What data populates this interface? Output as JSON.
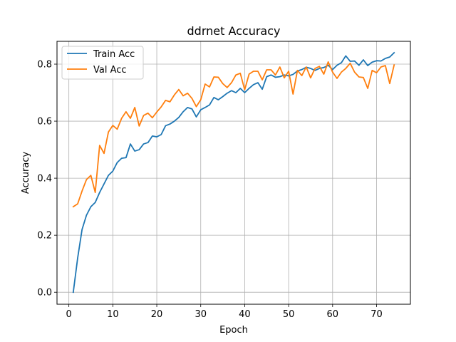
{
  "chart_data": {
    "type": "line",
    "title": "ddrnet Accuracy",
    "xlabel": "Epoch",
    "ylabel": "Accuracy",
    "xlim": [
      -2.7,
      77.7
    ],
    "ylim": [
      -0.042,
      0.88
    ],
    "x_ticks": [
      0,
      10,
      20,
      30,
      40,
      50,
      60,
      70
    ],
    "y_ticks": [
      0.0,
      0.2,
      0.4,
      0.6,
      0.8
    ],
    "x_tick_labels": [
      "0",
      "10",
      "20",
      "30",
      "40",
      "50",
      "60",
      "70"
    ],
    "y_tick_labels": [
      "0.0",
      "0.2",
      "0.4",
      "0.6",
      "0.8"
    ],
    "grid": true,
    "legend_placement": "upper-left",
    "x": [
      1,
      2,
      3,
      4,
      5,
      6,
      7,
      8,
      9,
      10,
      11,
      12,
      13,
      14,
      15,
      16,
      17,
      18,
      19,
      20,
      21,
      22,
      23,
      24,
      25,
      26,
      27,
      28,
      29,
      30,
      31,
      32,
      33,
      34,
      35,
      36,
      37,
      38,
      39,
      40,
      41,
      42,
      43,
      44,
      45,
      46,
      47,
      48,
      49,
      50,
      51,
      52,
      53,
      54,
      55,
      56,
      57,
      58,
      59,
      60,
      61,
      62,
      63,
      64,
      65,
      66,
      67,
      68,
      69,
      70,
      71,
      72,
      73,
      74
    ],
    "series": [
      {
        "name": "Train Acc",
        "color": "#1f77b4",
        "values": [
          0.0,
          0.12,
          0.22,
          0.27,
          0.3,
          0.315,
          0.35,
          0.38,
          0.41,
          0.425,
          0.455,
          0.47,
          0.472,
          0.52,
          0.495,
          0.5,
          0.52,
          0.525,
          0.548,
          0.545,
          0.553,
          0.584,
          0.59,
          0.6,
          0.613,
          0.633,
          0.648,
          0.643,
          0.615,
          0.64,
          0.648,
          0.657,
          0.683,
          0.675,
          0.686,
          0.698,
          0.707,
          0.7,
          0.715,
          0.7,
          0.715,
          0.728,
          0.735,
          0.712,
          0.756,
          0.762,
          0.754,
          0.756,
          0.762,
          0.759,
          0.764,
          0.776,
          0.781,
          0.789,
          0.785,
          0.778,
          0.785,
          0.788,
          0.796,
          0.781,
          0.796,
          0.805,
          0.829,
          0.81,
          0.811,
          0.796,
          0.815,
          0.795,
          0.807,
          0.812,
          0.811,
          0.82,
          0.825,
          0.84
        ]
      },
      {
        "name": "Val Acc",
        "color": "#ff7f0e",
        "values": [
          0.3,
          0.31,
          0.355,
          0.395,
          0.41,
          0.35,
          0.515,
          0.487,
          0.562,
          0.585,
          0.572,
          0.61,
          0.633,
          0.61,
          0.648,
          0.583,
          0.62,
          0.628,
          0.612,
          0.632,
          0.65,
          0.673,
          0.668,
          0.692,
          0.711,
          0.689,
          0.698,
          0.68,
          0.651,
          0.675,
          0.73,
          0.72,
          0.755,
          0.754,
          0.732,
          0.718,
          0.735,
          0.762,
          0.768,
          0.71,
          0.765,
          0.775,
          0.775,
          0.745,
          0.78,
          0.78,
          0.762,
          0.79,
          0.752,
          0.775,
          0.695,
          0.778,
          0.76,
          0.79,
          0.752,
          0.785,
          0.792,
          0.765,
          0.808,
          0.772,
          0.75,
          0.772,
          0.785,
          0.803,
          0.772,
          0.755,
          0.753,
          0.715,
          0.778,
          0.77,
          0.79,
          0.795,
          0.732,
          0.797
        ]
      }
    ]
  }
}
